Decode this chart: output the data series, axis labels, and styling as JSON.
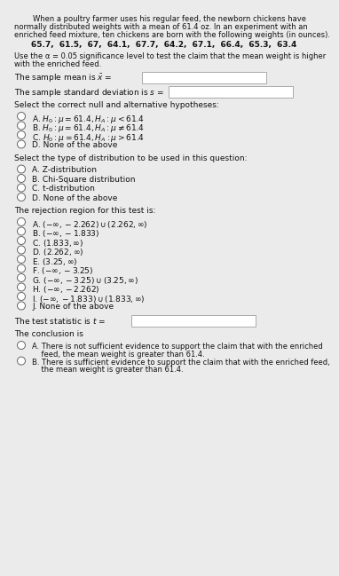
{
  "bg_color": "#ebebeb",
  "text_color": "#111111",
  "fs": 6.5,
  "fs_sm": 6.0,
  "intro_lines": [
    "        When a poultry farmer uses his regular feed, the newborn chickens have",
    "normally distributed weights with a mean of 61.4 oz. In an experiment with an",
    "enriched feed mixture, ten chickens are born with the following weights (in ounces)."
  ],
  "data_line": "65.7,  61.5,  67,  64.1,  67.7,  64.2,  67.1,  66.4,  65.3,  63.4",
  "alpha_lines": [
    "Use the α = 0.05 significance level to test the claim that the mean weight is higher",
    "with the enriched feed."
  ],
  "mean_label": "The sample mean is $\\bar{x}$ =",
  "sd_label": "The sample standard deviation is $s$ =",
  "hyp_header": "Select the correct null and alternative hypotheses:",
  "hyp_options": [
    "A. $H_0 : \\mu = 61.4, H_A : \\mu < 61.4$",
    "B. $H_0 : \\mu = 61.4, H_A : \\mu \\neq 61.4$",
    "C. $H_0 : \\mu = 61.4, H_A : \\mu > 61.4$",
    "D. None of the above"
  ],
  "dist_header": "Select the type of distribution to be used in this question:",
  "dist_options": [
    "A. Z-distribution",
    "B. Chi-Square distribution",
    "C. t-distribution",
    "D. None of the above"
  ],
  "rej_header": "The rejection region for this test is:",
  "rej_options": [
    "A. $(-\\infty, -2.262) \\cup (2.262, \\infty)$",
    "B. $(-\\infty, -1.833)$",
    "C. $(1.833, \\infty)$",
    "D. $(2.262, \\infty)$",
    "E. $(3.25, \\infty)$",
    "F. $(-\\infty, -3.25)$",
    "G. $(-\\infty, -3.25) \\cup (3.25, \\infty)$",
    "H. $(-\\infty, -2.262)$",
    "I. $(-\\infty, -1.833) \\cup (1.833, \\infty)$",
    "J. None of the above"
  ],
  "stat_label": "The test statistic is $t$ =",
  "conc_header": "The conclusion is",
  "conc_options": [
    [
      "A. There is not sufficient evidence to support the claim that with the enriched",
      "    feed, the mean weight is greater than 61.4."
    ],
    [
      "B. There is sufficient evidence to support the claim that with the enriched feed,",
      "    the mean weight is greater than 61.4."
    ]
  ]
}
